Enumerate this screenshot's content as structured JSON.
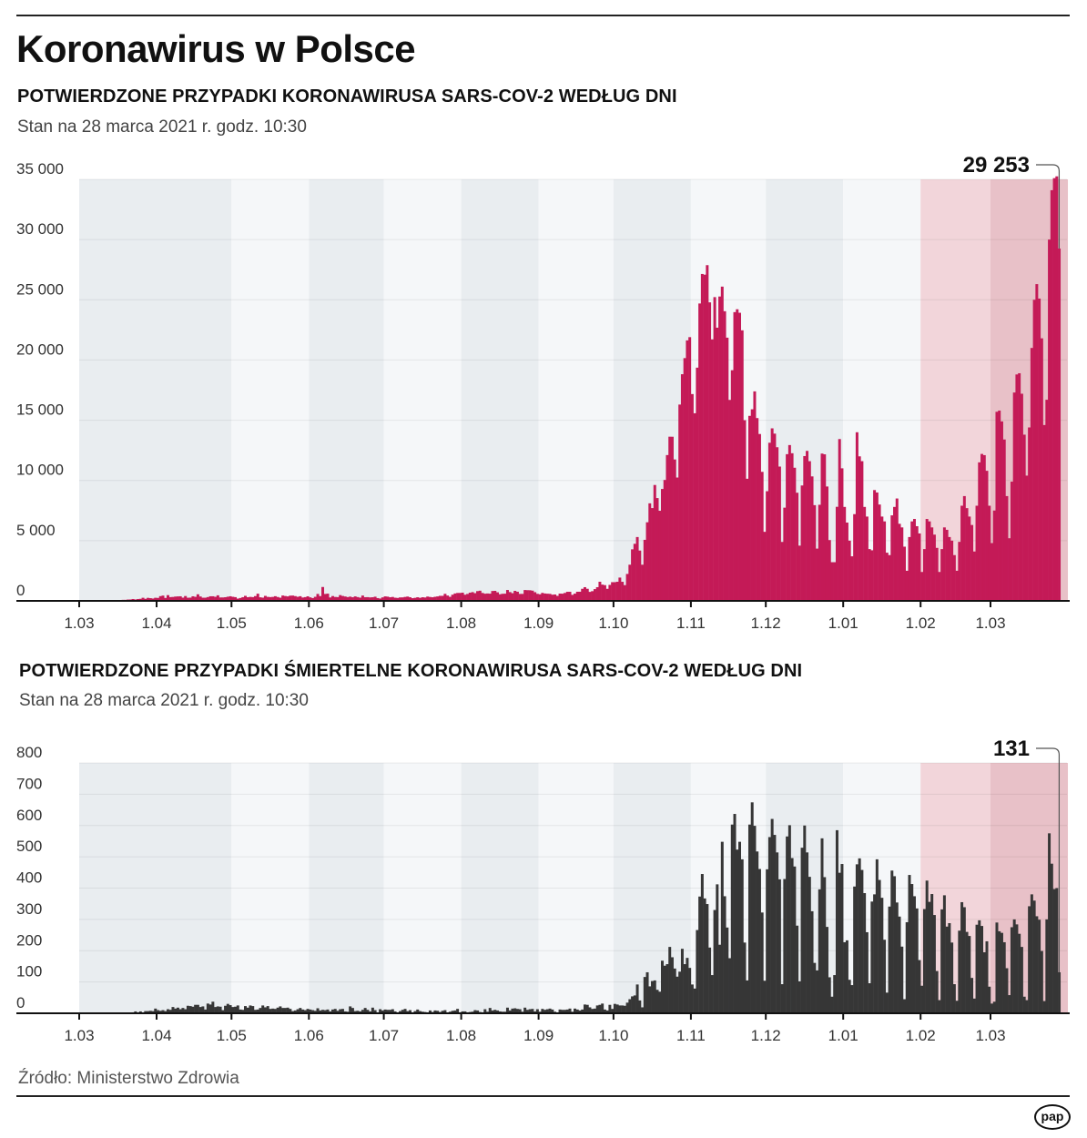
{
  "title": "Koronawirus w Polsce",
  "source": "Źródło: Ministerstwo Zdrowia",
  "logo": "pap",
  "colors": {
    "cases_bar": "#c41a57",
    "deaths_bar": "#363636",
    "band_a": "#e9edf0",
    "band_b": "#f5f7f9",
    "band_feb": "#f2d5da",
    "band_mar": "#e8c1c8"
  },
  "chart_data": [
    {
      "type": "bar",
      "title": "POTWIERDZONE PRZYPADKI KORONAWIRUSA SARS-COV-2 WEDŁUG DNI",
      "subtitle": "Stan na 28 marca 2021 r. godz. 10:30",
      "ylim": [
        0,
        35000
      ],
      "yticks": [
        "35 000",
        "30 000",
        "25 000",
        "20 000",
        "15 000",
        "10 000",
        "5 000",
        "0"
      ],
      "ytick_values": [
        35000,
        30000,
        25000,
        20000,
        15000,
        10000,
        5000,
        0
      ],
      "xticks": [
        "1.03",
        "1.04",
        "1.05",
        "1.06",
        "1.07",
        "1.08",
        "1.09",
        "1.10",
        "1.11",
        "1.12",
        "1.01",
        "1.02",
        "1.03"
      ],
      "annotation": {
        "label": "29 253",
        "date": "2021-03-28",
        "value": 29253
      },
      "grid": true,
      "months": [
        {
          "month": "2020-03",
          "values": [
            0,
            0,
            0,
            1,
            0,
            4,
            1,
            6,
            5,
            11,
            14,
            17,
            36,
            35,
            47,
            27,
            53,
            87,
            88,
            111,
            115,
            152,
            115,
            152,
            170,
            256,
            170,
            249,
            224,
            193,
            256
          ]
        },
        {
          "month": "2020-04",
          "values": [
            243,
            392,
            437,
            244,
            475,
            311,
            325,
            357,
            370,
            380,
            268,
            401,
            260,
            268,
            380,
            336,
            545,
            363,
            263,
            263,
            313,
            380,
            381,
            337,
            460,
            283,
            285,
            303,
            344,
            380
          ]
        },
        {
          "month": "2020-05",
          "values": [
            338,
            309,
            187,
            238,
            307,
            416,
            304,
            330,
            312,
            395,
            595,
            295,
            268,
            414,
            331,
            313,
            329,
            386,
            321,
            263,
            443,
            402,
            371,
            434,
            440,
            395,
            339,
            386,
            279,
            311,
            379
          ]
        },
        {
          "month": "2020-06",
          "values": [
            292,
            230,
            338,
            576,
            396,
            1151,
            575,
            599,
            282,
            400,
            326,
            312,
            478,
            407,
            364,
            314,
            352,
            300,
            371,
            314,
            267,
            440,
            305,
            308,
            287,
            300,
            345,
            230,
            193,
            290
          ]
        },
        {
          "month": "2020-07",
          "values": [
            371,
            351,
            299,
            325,
            262,
            243,
            285,
            290,
            327,
            358,
            299,
            223,
            253,
            299,
            251,
            300,
            280,
            358,
            322,
            299,
            339,
            370,
            418,
            418,
            584,
            443,
            337,
            512,
            615,
            657,
            658
          ]
        },
        {
          "month": "2020-08",
          "values": [
            680,
            512,
            575,
            680,
            726,
            640,
            809,
            843,
            658,
            596,
            613,
            599,
            820,
            832,
            711,
            548,
            587,
            597,
            903,
            730,
            639,
            832,
            759,
            577,
            579,
            900,
            887,
            882,
            850,
            720,
            584
          ]
        },
        {
          "month": "2020-09",
          "values": [
            547,
            662,
            612,
            595,
            583,
            513,
            530,
            417,
            603,
            597,
            658,
            753,
            754,
            500,
            600,
            757,
            758,
            1002,
            1136,
            1003,
            746,
            806,
            976,
            1136,
            1587,
            1350,
            1306,
            1000,
            1326,
            1552
          ]
        },
        {
          "month": "2020-10",
          "values": [
            1552,
            1587,
            1934,
            1584,
            1306,
            2236,
            3003,
            4280,
            4739,
            5300,
            4178,
            3003,
            5068,
            6526,
            8099,
            7705,
            9622,
            8536,
            7482,
            9291,
            10040,
            12107,
            13632,
            13628,
            11742,
            10241,
            16300,
            18820,
            20156,
            21629,
            21897
          ]
        },
        {
          "month": "2020-11",
          "values": [
            17171,
            15578,
            19364,
            24692,
            27143,
            27086,
            27875,
            24785,
            21713,
            25221,
            22683,
            25271,
            26093,
            24051,
            21854,
            16687,
            19152,
            23975,
            24213,
            23921,
            22464,
            15002,
            10139,
            15362,
            15907,
            17395,
            15178,
            13855,
            10713,
            5733
          ]
        },
        {
          "month": "2020-12",
          "values": [
            9105,
            13130,
            14325,
            13886,
            12756,
            11151,
            4896,
            7739,
            12180,
            12937,
            12258,
            11054,
            8978,
            4586,
            9581,
            12022,
            12454,
            11599,
            10335,
            7948,
            4340,
            7978,
            12230,
            12169,
            9496,
            5048,
            3211,
            3211,
            7810,
            13435,
            11006
          ]
        },
        {
          "month": "2021-01",
          "values": [
            7800,
            6500,
            5000,
            3700,
            7200,
            14000,
            12000,
            11600,
            7800,
            7000,
            4300,
            4200,
            9200,
            9000,
            8000,
            7000,
            6600,
            4000,
            3800,
            7100,
            7800,
            8500,
            6400,
            6100,
            4500,
            2500,
            5300,
            6600,
            6800,
            6200,
            5600
          ]
        },
        {
          "month": "2021-02",
          "values": [
            2400,
            4300,
            6800,
            6600,
            6100,
            5500,
            4400,
            2400,
            4300,
            6100,
            5900,
            5300,
            5000,
            3800,
            2500,
            4900,
            7900,
            8700,
            7700,
            7000,
            6300,
            4100,
            7900,
            11500,
            12200,
            12100,
            10800,
            7900
          ]
        },
        {
          "month": "2021-03",
          "values": [
            4800,
            7500,
            15700,
            15800,
            14900,
            13400,
            8700,
            5200,
            9900,
            17300,
            18800,
            18900,
            17200,
            13800,
            10400,
            14400,
            21000,
            25000,
            26300,
            25100,
            21800,
            14600,
            16700,
            30000,
            34100,
            35100,
            35250,
            29253
          ]
        }
      ]
    },
    {
      "type": "bar",
      "title": "POTWIERDZONE PRZYPADKI ŚMIERTELNE KORONAWIRUSA SARS-COV-2 WEDŁUG DNI",
      "subtitle": "Stan na 28 marca 2021 r. godz. 10:30",
      "ylim": [
        0,
        800
      ],
      "yticks": [
        "800",
        "700",
        "600",
        "500",
        "400",
        "300",
        "200",
        "100",
        "0"
      ],
      "ytick_values": [
        800,
        700,
        600,
        500,
        400,
        300,
        200,
        100,
        0
      ],
      "xticks": [
        "1.03",
        "1.04",
        "1.05",
        "1.06",
        "1.07",
        "1.08",
        "1.09",
        "1.10",
        "1.11",
        "1.12",
        "1.01",
        "1.02",
        "1.03"
      ],
      "annotation": {
        "label": "131",
        "date": "2021-03-28",
        "value": 131
      },
      "grid": true,
      "months": [
        {
          "month": "2020-03",
          "values": [
            0,
            0,
            0,
            0,
            0,
            0,
            0,
            0,
            0,
            0,
            1,
            1,
            1,
            0,
            0,
            0,
            2,
            1,
            1,
            2,
            1,
            3,
            6,
            3,
            6,
            2,
            7,
            7,
            8,
            7,
            15
          ]
        },
        {
          "month": "2020-04",
          "values": [
            10,
            8,
            10,
            7,
            13,
            11,
            20,
            15,
            18,
            13,
            17,
            13,
            24,
            23,
            21,
            27,
            27,
            20,
            22,
            12,
            31,
            28,
            37,
            20,
            22,
            21,
            10,
            24,
            30,
            26
          ]
        },
        {
          "month": "2020-05",
          "values": [
            20,
            21,
            25,
            12,
            11,
            23,
            18,
            25,
            23,
            11,
            12,
            17,
            25,
            19,
            23,
            14,
            15,
            14,
            18,
            22,
            17,
            17,
            18,
            14,
            7,
            9,
            13,
            17,
            12,
            10,
            14
          ]
        },
        {
          "month": "2020-06",
          "values": [
            12,
            10,
            8,
            16,
            9,
            11,
            10,
            12,
            6,
            12,
            14,
            8,
            13,
            14,
            6,
            5,
            22,
            17,
            7,
            8,
            6,
            11,
            17,
            11,
            6,
            18,
            10,
            1,
            13,
            9
          ]
        },
        {
          "month": "2020-07",
          "values": [
            12,
            11,
            11,
            13,
            6,
            3,
            7,
            11,
            14,
            7,
            10,
            3,
            7,
            12,
            7,
            5,
            4,
            3,
            9,
            4,
            9,
            8,
            4,
            8,
            10,
            2,
            5,
            8,
            9,
            14,
            3
          ]
        },
        {
          "month": "2020-08",
          "values": [
            6,
            6,
            3,
            4,
            5,
            10,
            9,
            4,
            3,
            13,
            5,
            17,
            9,
            11,
            9,
            6,
            5,
            5,
            18,
            9,
            15,
            16,
            14,
            13,
            5,
            18,
            11,
            13,
            14,
            6,
            13
          ]
        },
        {
          "month": "2020-09",
          "values": [
            5,
            14,
            11,
            13,
            15,
            12,
            5,
            3,
            12,
            11,
            11,
            12,
            15,
            5,
            15,
            12,
            9,
            12,
            28,
            27,
            19,
            14,
            15,
            25,
            27,
            31,
            12,
            9,
            27,
            14
          ]
        },
        {
          "month": "2020-10",
          "values": [
            30,
            28,
            25,
            25,
            24,
            34,
            45,
            54,
            57,
            92,
            41,
            19,
            116,
            131,
            86,
            103,
            105,
            75,
            69,
            168,
            152,
            157,
            212,
            179,
            143,
            117,
            133,
            206,
            157,
            177,
            145
          ]
        },
        {
          "month": "2020-11",
          "values": [
            92,
            79,
            266,
            373,
            445,
            367,
            349,
            210,
            122,
            330,
            412,
            219,
            548,
            374,
            274,
            176,
            603,
            637,
            523,
            548,
            492,
            226,
            105,
            603,
            674,
            599,
            517,
            461,
            322,
            104
          ]
        },
        {
          "month": "2020-12",
          "values": [
            460,
            563,
            621,
            570,
            514,
            428,
            93,
            429,
            565,
            601,
            496,
            469,
            280,
            102,
            529,
            600,
            514,
            436,
            326,
            161,
            137,
            396,
            559,
            435,
            276,
            115,
            53,
            122,
            585,
            449,
            477
          ]
        },
        {
          "month": "2021-01",
          "values": [
            227,
            233,
            107,
            90,
            405,
            476,
            495,
            458,
            384,
            259,
            96,
            357,
            380,
            492,
            426,
            369,
            235,
            66,
            341,
            456,
            438,
            354,
            309,
            213,
            45,
            291,
            442,
            413,
            374,
            335,
            170
          ]
        },
        {
          "month": "2021-02",
          "values": [
            88,
            333,
            424,
            356,
            381,
            314,
            135,
            42,
            332,
            377,
            277,
            288,
            226,
            93,
            40,
            264,
            355,
            339,
            260,
            247,
            113,
            47,
            283,
            297,
            279,
            195,
            230,
            85
          ]
        },
        {
          "month": "2021-03",
          "values": [
            31,
            37,
            290,
            262,
            257,
            227,
            144,
            58,
            275,
            300,
            284,
            254,
            212,
            53,
            42,
            342,
            380,
            360,
            310,
            299,
            199,
            39,
            300,
            575,
            478,
            397,
            400,
            131
          ]
        }
      ]
    }
  ]
}
